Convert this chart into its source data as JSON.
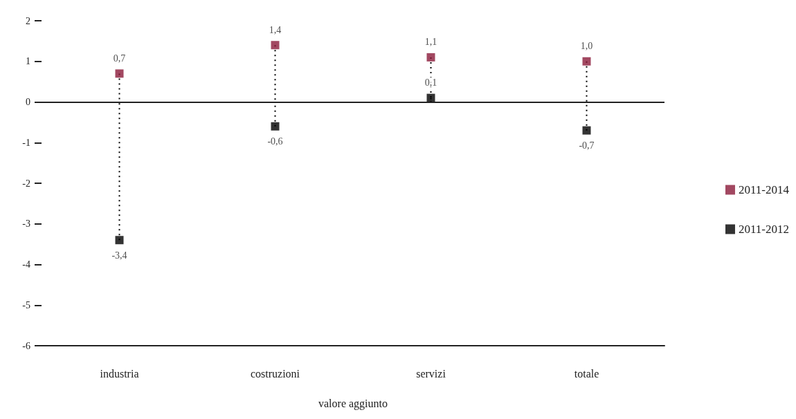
{
  "chart_data": {
    "type": "lollipop",
    "xlabel": "valore aggiunto",
    "categories": [
      "industria",
      "costruzioni",
      "servizi",
      "totale"
    ],
    "series": [
      {
        "name": "2011-2014",
        "color": "#8b1a3a",
        "values": [
          0.7,
          1.4,
          1.1,
          1.0
        ],
        "value_labels": [
          "0,7",
          "1,4",
          "1,1",
          "1,0"
        ]
      },
      {
        "name": "2011-2012",
        "color": "#000000",
        "values": [
          -3.4,
          -0.6,
          0.1,
          -0.7
        ],
        "value_labels": [
          "-3,4",
          "-0,6",
          "0,1",
          "-0,7"
        ]
      }
    ],
    "ylim": [
      -6,
      2
    ],
    "yticks": [
      -6,
      -5,
      -4,
      -3,
      -2,
      -1,
      0,
      1,
      2
    ],
    "ref_lines": [
      {
        "axis": "y",
        "value": 0,
        "color": "#222222"
      }
    ],
    "marker": "square",
    "line_style": "dotted",
    "grid": false,
    "legend": "right"
  }
}
